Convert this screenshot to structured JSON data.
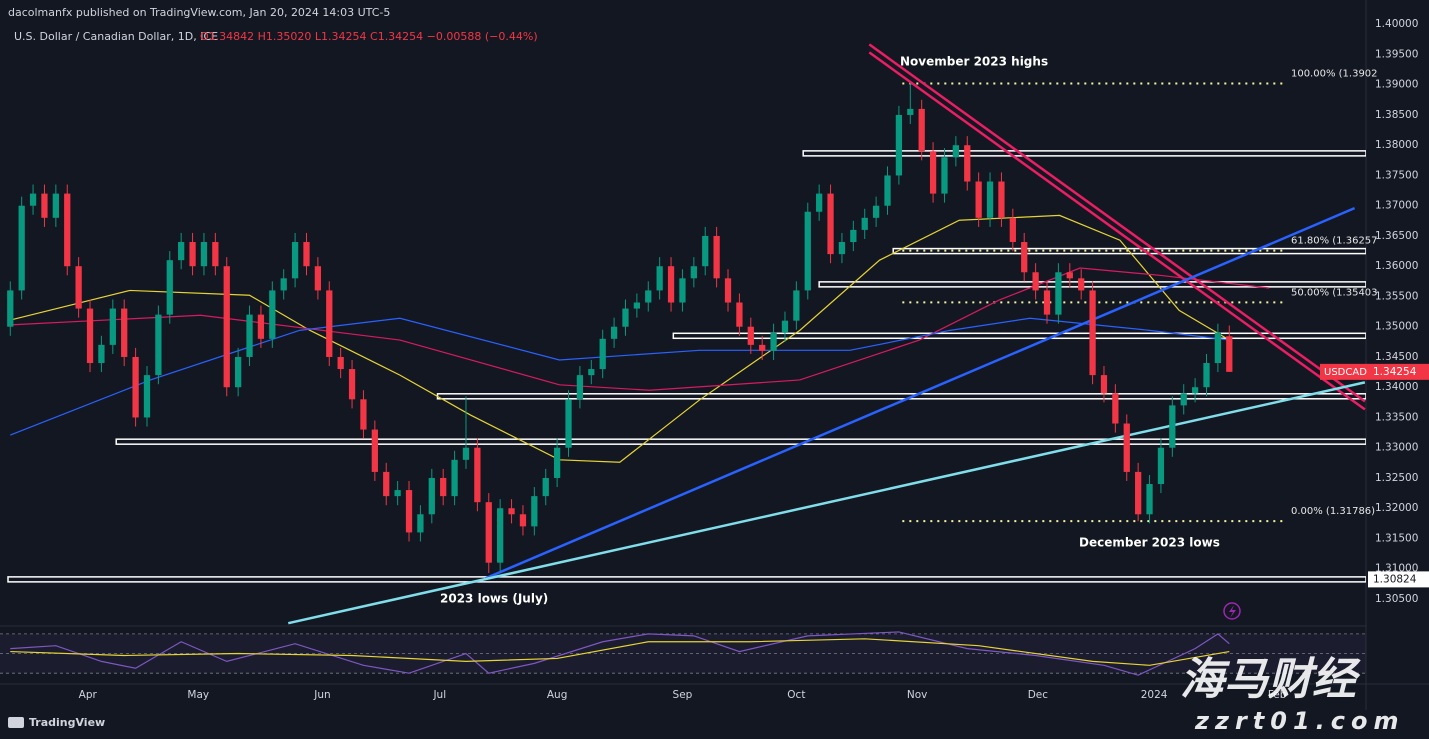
{
  "header": {
    "publisher": "dacolmanfx published on TradingView.com, Jan 20, 2024 14:03 UTC-5",
    "symbol": "U.S. Dollar / Canadian Dollar, 1D, ICE",
    "ohlc_text": "O1.34842 H1.35020 L1.34254 C1.34254 −0.00588 (−0.44%)"
  },
  "footer": {
    "brand": "TradingView"
  },
  "watermark": {
    "title": "海马财经",
    "site": "zzrt01.com"
  },
  "chart_data": {
    "type": "candlestick",
    "ticker": "USDCAD",
    "up_color": "#089981",
    "down_color": "#f23645",
    "xlim": [
      -0.2,
      119
    ],
    "ylim": [
      1.3007,
      1.404
    ],
    "grid": false,
    "xticks": [
      {
        "value": 6.8,
        "label": "Apr"
      },
      {
        "value": 16.5,
        "label": "May"
      },
      {
        "value": 27.4,
        "label": "Jun"
      },
      {
        "value": 37.7,
        "label": "Jul"
      },
      {
        "value": 48,
        "label": "Aug"
      },
      {
        "value": 59,
        "label": "Sep"
      },
      {
        "value": 69,
        "label": "Oct"
      },
      {
        "value": 79.6,
        "label": "Nov"
      },
      {
        "value": 90.2,
        "label": "Dec"
      },
      {
        "value": 100.4,
        "label": "2024"
      },
      {
        "value": 111.2,
        "label": "Feb"
      }
    ],
    "yticks": [
      {
        "value": 1.305,
        "label": "1.30500"
      },
      {
        "value": 1.31,
        "label": "1.31000"
      },
      {
        "value": 1.315,
        "label": "1.31500"
      },
      {
        "value": 1.32,
        "label": "1.32000"
      },
      {
        "value": 1.325,
        "label": "1.32500"
      },
      {
        "value": 1.33,
        "label": "1.33000"
      },
      {
        "value": 1.335,
        "label": "1.33500"
      },
      {
        "value": 1.34,
        "label": "1.34000"
      },
      {
        "value": 1.345,
        "label": "1.34500"
      },
      {
        "value": 1.35,
        "label": "1.35000"
      },
      {
        "value": 1.355,
        "label": "1.35500"
      },
      {
        "value": 1.36,
        "label": "1.36000"
      },
      {
        "value": 1.365,
        "label": "1.36500"
      },
      {
        "value": 1.37,
        "label": "1.37000"
      },
      {
        "value": 1.375,
        "label": "1.37500"
      },
      {
        "value": 1.38,
        "label": "1.38000"
      },
      {
        "value": 1.385,
        "label": "1.38500"
      },
      {
        "value": 1.39,
        "label": "1.39000"
      },
      {
        "value": 1.395,
        "label": "1.39500"
      },
      {
        "value": 1.4,
        "label": "1.40000"
      }
    ],
    "open": [
      1.35,
      1.356,
      1.37,
      1.372,
      1.368,
      1.372,
      1.36,
      1.353,
      1.344,
      1.347,
      1.353,
      1.345,
      1.335,
      1.342,
      1.352,
      1.361,
      1.364,
      1.36,
      1.364,
      1.36,
      1.34,
      1.345,
      1.352,
      1.348,
      1.356,
      1.358,
      1.364,
      1.36,
      1.356,
      1.345,
      1.343,
      1.338,
      1.333,
      1.326,
      1.322,
      1.323,
      1.316,
      1.319,
      1.325,
      1.322,
      1.328,
      1.33,
      1.321,
      1.311,
      1.32,
      1.319,
      1.317,
      1.322,
      1.325,
      1.33,
      1.338,
      1.342,
      1.343,
      1.348,
      1.35,
      1.353,
      1.354,
      1.356,
      1.36,
      1.354,
      1.358,
      1.36,
      1.365,
      1.358,
      1.354,
      1.35,
      1.347,
      1.346,
      1.349,
      1.351,
      1.356,
      1.369,
      1.372,
      1.362,
      1.364,
      1.366,
      1.368,
      1.37,
      1.375,
      1.385,
      1.386,
      1.379,
      1.372,
      1.378,
      1.38,
      1.374,
      1.368,
      1.374,
      1.368,
      1.364,
      1.359,
      1.356,
      1.352,
      1.359,
      1.358,
      1.356,
      1.342,
      1.339,
      1.334,
      1.326,
      1.319,
      1.324,
      1.33,
      1.337,
      1.339,
      1.34,
      1.344,
      1.34842
    ],
    "high": [
      1.3575,
      1.3715,
      1.3735,
      1.3735,
      1.3735,
      1.3735,
      1.3615,
      1.3545,
      1.3485,
      1.3545,
      1.3545,
      1.3465,
      1.3435,
      1.3535,
      1.3625,
      1.3655,
      1.3655,
      1.3655,
      1.3655,
      1.3615,
      1.3465,
      1.3535,
      1.3535,
      1.3575,
      1.3595,
      1.3655,
      1.3655,
      1.3615,
      1.3575,
      1.3465,
      1.3445,
      1.3395,
      1.3345,
      1.3275,
      1.3245,
      1.3245,
      1.3205,
      1.3265,
      1.3265,
      1.3295,
      1.3385,
      1.3315,
      1.3225,
      1.3215,
      1.3215,
      1.3205,
      1.3235,
      1.3265,
      1.3315,
      1.3395,
      1.3435,
      1.3445,
      1.3495,
      1.3515,
      1.3545,
      1.3555,
      1.3575,
      1.3615,
      1.3615,
      1.3595,
      1.3615,
      1.3665,
      1.3665,
      1.3595,
      1.3555,
      1.3515,
      1.3485,
      1.3505,
      1.3525,
      1.3575,
      1.3705,
      1.3735,
      1.3735,
      1.3655,
      1.3675,
      1.3695,
      1.3715,
      1.3765,
      1.3865,
      1.3902,
      1.3875,
      1.3805,
      1.3795,
      1.3815,
      1.3815,
      1.3755,
      1.3755,
      1.3755,
      1.3695,
      1.3655,
      1.3605,
      1.3575,
      1.3605,
      1.3605,
      1.3595,
      1.3575,
      1.3435,
      1.3405,
      1.3355,
      1.3275,
      1.3255,
      1.3315,
      1.3385,
      1.3405,
      1.3415,
      1.3455,
      1.3505,
      1.3502
    ],
    "low": [
      1.3485,
      1.3545,
      1.3685,
      1.3665,
      1.3665,
      1.3585,
      1.3515,
      1.3425,
      1.3425,
      1.3455,
      1.3435,
      1.3335,
      1.3335,
      1.3405,
      1.3505,
      1.3595,
      1.3585,
      1.3585,
      1.3585,
      1.3385,
      1.3385,
      1.3435,
      1.3465,
      1.3465,
      1.3545,
      1.3565,
      1.3585,
      1.3545,
      1.3435,
      1.3415,
      1.3365,
      1.3315,
      1.3245,
      1.3205,
      1.3205,
      1.3145,
      1.3145,
      1.3175,
      1.3205,
      1.3205,
      1.3265,
      1.3195,
      1.3093,
      1.3095,
      1.3175,
      1.3155,
      1.3155,
      1.3205,
      1.3235,
      1.3285,
      1.3365,
      1.3405,
      1.3415,
      1.3465,
      1.3485,
      1.3515,
      1.3525,
      1.3545,
      1.3525,
      1.3525,
      1.3565,
      1.3585,
      1.3565,
      1.3525,
      1.3485,
      1.3455,
      1.3445,
      1.3445,
      1.3475,
      1.3495,
      1.3545,
      1.3675,
      1.3605,
      1.3605,
      1.3625,
      1.3645,
      1.3665,
      1.3685,
      1.3735,
      1.3835,
      1.3775,
      1.3705,
      1.3705,
      1.3765,
      1.3725,
      1.3665,
      1.3665,
      1.3665,
      1.3625,
      1.3575,
      1.3545,
      1.3505,
      1.3505,
      1.3565,
      1.3545,
      1.3405,
      1.3375,
      1.3325,
      1.3245,
      1.31786,
      1.3175,
      1.3225,
      1.3285,
      1.3355,
      1.3375,
      1.3385,
      1.3425,
      1.34254
    ],
    "close": [
      1.356,
      1.37,
      1.372,
      1.368,
      1.372,
      1.36,
      1.353,
      1.344,
      1.347,
      1.353,
      1.345,
      1.335,
      1.342,
      1.352,
      1.361,
      1.364,
      1.36,
      1.364,
      1.36,
      1.34,
      1.345,
      1.352,
      1.348,
      1.356,
      1.358,
      1.364,
      1.36,
      1.356,
      1.345,
      1.343,
      1.338,
      1.333,
      1.326,
      1.322,
      1.323,
      1.316,
      1.319,
      1.325,
      1.322,
      1.328,
      1.33,
      1.321,
      1.311,
      1.32,
      1.319,
      1.317,
      1.322,
      1.325,
      1.33,
      1.338,
      1.342,
      1.343,
      1.348,
      1.35,
      1.353,
      1.354,
      1.356,
      1.36,
      1.354,
      1.358,
      1.36,
      1.365,
      1.358,
      1.354,
      1.35,
      1.347,
      1.346,
      1.349,
      1.351,
      1.356,
      1.369,
      1.372,
      1.362,
      1.364,
      1.366,
      1.368,
      1.37,
      1.375,
      1.385,
      1.386,
      1.379,
      1.372,
      1.378,
      1.38,
      1.374,
      1.368,
      1.374,
      1.368,
      1.364,
      1.359,
      1.356,
      1.352,
      1.359,
      1.358,
      1.356,
      1.342,
      1.339,
      1.334,
      1.326,
      1.319,
      1.324,
      1.33,
      1.337,
      1.339,
      1.34,
      1.344,
      1.349,
      1.34254
    ],
    "moving_averages": [
      {
        "color": "#e6d335",
        "x": [
          0,
          10.5,
          21,
          26.3,
          34.2,
          40.4,
          48.2,
          53.5,
          60.5,
          69.3,
          76.3,
          83.3,
          92.1,
          97.4,
          102.6,
          107
        ],
        "values": [
          1.3511,
          1.356,
          1.3552,
          1.3494,
          1.342,
          1.3354,
          1.328,
          1.3276,
          1.3379,
          1.3494,
          1.361,
          1.3676,
          1.3684,
          1.3643,
          1.3527,
          1.3478
        ]
      },
      {
        "color": "#d81b60",
        "x": [
          0,
          16.7,
          34.2,
          48.2,
          56.1,
          69.3,
          79.8,
          86.8,
          93.9,
          100.9,
          110.5
        ],
        "values": [
          1.3503,
          1.3519,
          1.3478,
          1.3404,
          1.3395,
          1.3412,
          1.3478,
          1.3544,
          1.3597,
          1.3585,
          1.3564
        ]
      },
      {
        "color": "#2962ff",
        "x": [
          0,
          12.3,
          25.4,
          34.2,
          48.2,
          60.5,
          73.7,
          82.5,
          89.5,
          100,
          107
        ],
        "values": [
          1.3321,
          1.3412,
          1.3494,
          1.3514,
          1.3445,
          1.3461,
          1.3461,
          1.3494,
          1.3514,
          1.3494,
          1.3478
        ]
      }
    ],
    "levels": [
      {
        "price": 1.37865,
        "from": 69.6
      },
      {
        "price": 1.3625,
        "from": 77.5
      },
      {
        "price": 1.357,
        "from": 71
      },
      {
        "price": 1.3485,
        "from": 58.2
      },
      {
        "price": 1.3385,
        "from": 37.5
      },
      {
        "price": 1.331,
        "from": 9.3
      },
      {
        "price": 1.30824,
        "from": -0.2
      }
    ],
    "fib": [
      {
        "label": "100.00% (1.3902",
        "price": 1.3902
      },
      {
        "label": "61.80% (1.36257",
        "price": 1.36257
      },
      {
        "label": "50.00% (1.35403",
        "price": 1.35403
      },
      {
        "label": "0.00% (1.31786)",
        "price": 1.31786
      }
    ],
    "fib_range": [
      78.3,
      111.8
    ],
    "trendlines": [
      {
        "color": "#e91e63",
        "x": [
          75.4,
          118.9
        ],
        "values": [
          1.396,
          1.337
        ]
      },
      {
        "color": "#2962ff",
        "x": [
          41.7,
          118
        ],
        "values": [
          1.3084,
          1.3696
        ]
      },
      {
        "color": "#80deea",
        "x": [
          24.4,
          118.9
        ],
        "values": [
          1.301,
          1.3408
        ]
      }
    ],
    "annotations": [
      "November 2023 highs",
      "December 2023 lows",
      "2023 lows (July)"
    ],
    "rsi": {
      "ylim": [
        20,
        76
      ],
      "levels": [
        70,
        50,
        30
      ],
      "series": [
        {
          "color": "#7e57c2",
          "x": [
            0,
            4,
            8,
            11,
            15,
            19,
            25,
            31,
            35,
            40,
            42,
            46,
            52,
            56,
            60,
            64,
            70,
            78,
            84,
            90,
            96,
            99,
            104,
            106,
            107
          ],
          "values": [
            55,
            58,
            42,
            35,
            62,
            42,
            60,
            38,
            30,
            50,
            30,
            40,
            62,
            70,
            68,
            52,
            68,
            72,
            55,
            48,
            38,
            28,
            55,
            70,
            60
          ]
        },
        {
          "color": "#e6d335",
          "x": [
            0,
            10,
            20,
            30,
            40,
            48,
            56,
            65,
            75,
            85,
            95,
            100,
            107
          ],
          "values": [
            52,
            48,
            50,
            48,
            42,
            45,
            62,
            62,
            65,
            58,
            42,
            38,
            52
          ]
        }
      ]
    }
  }
}
